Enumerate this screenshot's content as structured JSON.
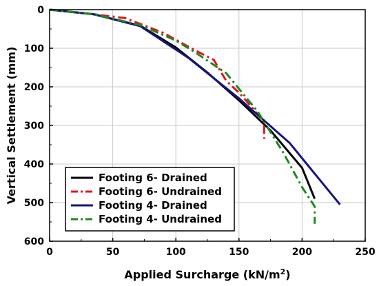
{
  "chart_data": {
    "type": "line",
    "xlabel": "Applied Surcharge (kN/m",
    "xlabel_sup": "2",
    "xlabel_close": ")",
    "ylabel": "Vertical Settlement (mm)",
    "xlim": [
      0,
      250
    ],
    "ylim": [
      0,
      600
    ],
    "y_inverted": true,
    "x_ticks": [
      "0",
      "50",
      "100",
      "150",
      "200",
      "250"
    ],
    "y_ticks": [
      "0",
      "100",
      "200",
      "300",
      "400",
      "500",
      "600"
    ],
    "grid": true,
    "legend_position": "bottom-left",
    "series": [
      {
        "name": "Footing 6- Drained",
        "color": "#000000",
        "dash": "solid",
        "x": [
          0,
          35,
          72,
          100,
          125,
          150,
          175,
          200,
          210
        ],
        "y": [
          0,
          12,
          42,
          98,
          163,
          235,
          313,
          410,
          490
        ]
      },
      {
        "name": "Footing 6- Undrained",
        "color": "#e8111d",
        "dash": "dashdot",
        "x": [
          0,
          30,
          60,
          90,
          100,
          115,
          130,
          140,
          150,
          160,
          165,
          170,
          170,
          170
        ],
        "y": [
          0,
          10,
          22,
          60,
          78,
          105,
          130,
          185,
          215,
          252,
          272,
          290,
          312,
          335
        ]
      },
      {
        "name": "Footing 4- Drained",
        "color": "#16157c",
        "dash": "solid",
        "x": [
          0,
          35,
          72,
          110,
          150,
          190,
          210,
          230
        ],
        "y": [
          0,
          12,
          43,
          125,
          230,
          345,
          425,
          505
        ]
      },
      {
        "name": "Footing 4- Undrained",
        "color": "#1b8a1b",
        "dash": "dashdot",
        "x": [
          0,
          35,
          72,
          100,
          115,
          140,
          165,
          185,
          200,
          210,
          210
        ],
        "y": [
          0,
          12,
          40,
          80,
          110,
          165,
          265,
          370,
          460,
          510,
          555
        ]
      }
    ]
  }
}
